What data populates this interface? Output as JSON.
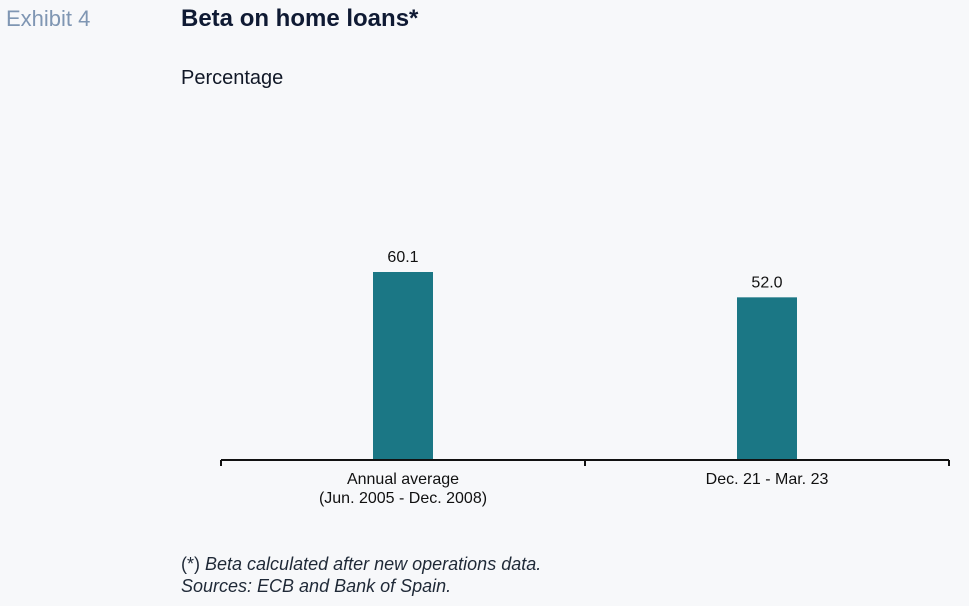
{
  "exhibit_label": "Exhibit 4",
  "title": "Beta on home loans*",
  "subtitle": "Percentage",
  "footnote": {
    "marker": "(*)",
    "text": "Beta calculated after new operations data.",
    "sources": "Sources: ECB and Bank of Spain."
  },
  "colors": {
    "bar": "#1b7785",
    "axis": "#111111",
    "exhibit_label": "#7f96b3",
    "title": "#0f1a33",
    "background": "#f7f8fa"
  },
  "chart_data": {
    "type": "bar",
    "title": "Beta on home loans*",
    "subtitle": "Percentage",
    "categories": [
      [
        "Annual average",
        "(Jun. 2005 - Dec. 2008)"
      ],
      [
        "Dec. 21 - Mar. 23"
      ]
    ],
    "values": [
      60.1,
      52.0
    ],
    "data_labels": [
      "60.1",
      "52.0"
    ],
    "ylim": [
      0,
      100
    ],
    "y_axis_visible": false,
    "grid": false,
    "legend": "none"
  }
}
